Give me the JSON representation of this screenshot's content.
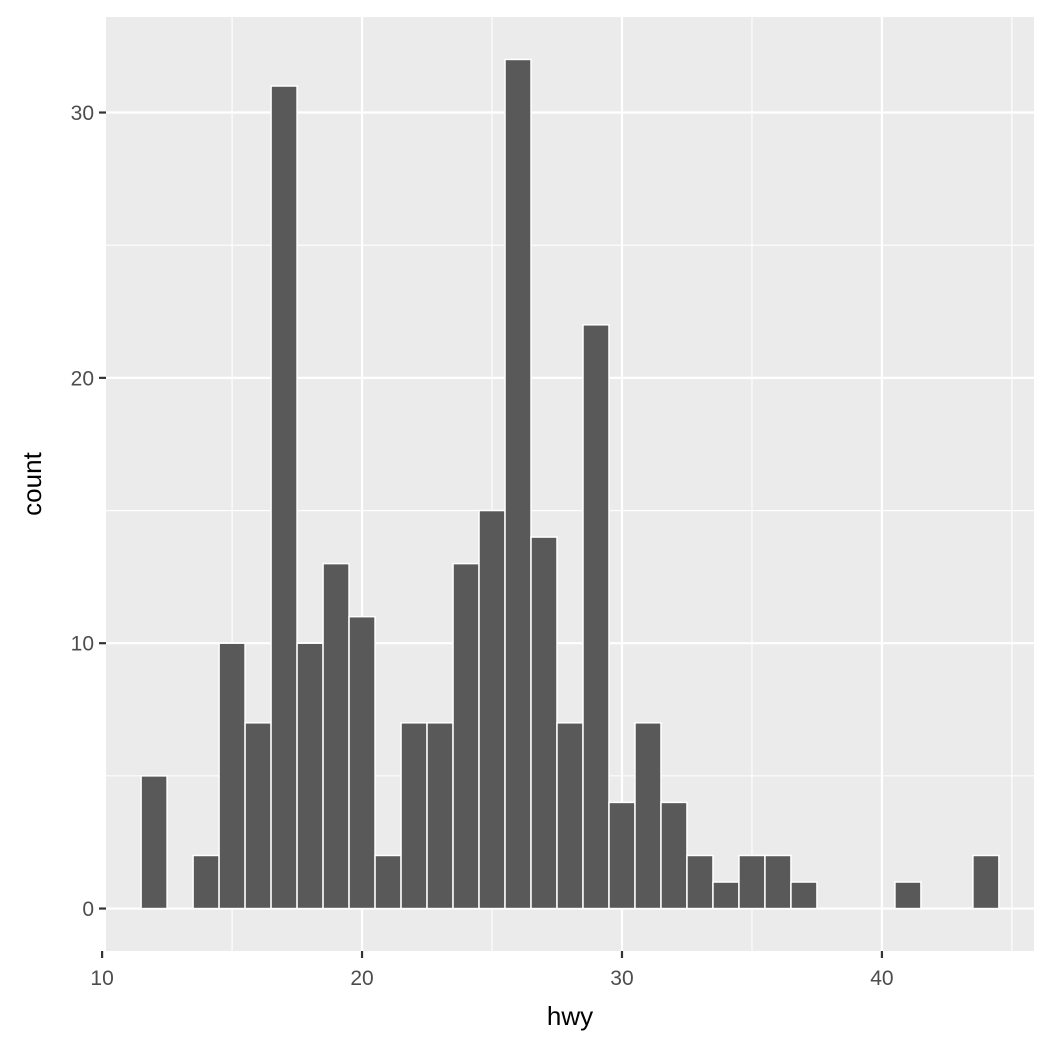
{
  "chart_data": {
    "type": "bar",
    "xlabel": "hwy",
    "ylabel": "count",
    "xlim": [
      10.15,
      45.85
    ],
    "ylim": [
      -1.6,
      33.6
    ],
    "x_ticks": [
      10,
      20,
      30,
      40
    ],
    "y_ticks": [
      0,
      10,
      20,
      30
    ],
    "grid": true,
    "bin_width": 1.0,
    "bins": [
      {
        "x": 12,
        "count": 5
      },
      {
        "x": 14,
        "count": 2
      },
      {
        "x": 15,
        "count": 10
      },
      {
        "x": 16,
        "count": 7
      },
      {
        "x": 17,
        "count": 31
      },
      {
        "x": 18,
        "count": 10
      },
      {
        "x": 19,
        "count": 13
      },
      {
        "x": 20,
        "count": 11
      },
      {
        "x": 21,
        "count": 2
      },
      {
        "x": 22,
        "count": 7
      },
      {
        "x": 23,
        "count": 7
      },
      {
        "x": 24,
        "count": 13
      },
      {
        "x": 25,
        "count": 15
      },
      {
        "x": 26,
        "count": 32
      },
      {
        "x": 27,
        "count": 14
      },
      {
        "x": 28,
        "count": 7
      },
      {
        "x": 29,
        "count": 22
      },
      {
        "x": 30,
        "count": 4
      },
      {
        "x": 31,
        "count": 7
      },
      {
        "x": 32,
        "count": 4
      },
      {
        "x": 33,
        "count": 2
      },
      {
        "x": 34,
        "count": 1
      },
      {
        "x": 35,
        "count": 2
      },
      {
        "x": 36,
        "count": 2
      },
      {
        "x": 37,
        "count": 1
      },
      {
        "x": 41,
        "count": 1
      },
      {
        "x": 44,
        "count": 2
      }
    ],
    "colors": {
      "bar_fill": "#595959",
      "bar_stroke": "#ffffff",
      "panel_bg": "#ebebeb",
      "grid": "#ffffff",
      "tick": "#333333",
      "tick_label": "#4d4d4d"
    }
  }
}
